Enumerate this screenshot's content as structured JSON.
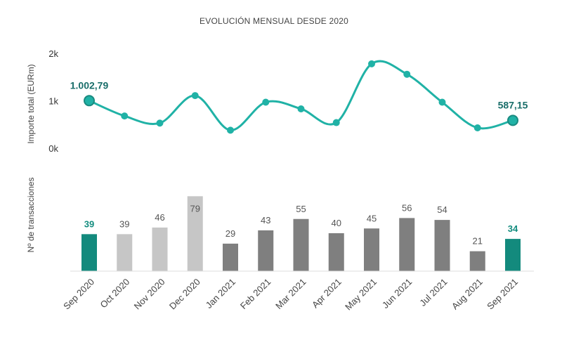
{
  "chart_data": {
    "title": "EVOLUCIÓN MENSUAL DESDE 2020",
    "categories": [
      "Sep 2020",
      "Oct 2020",
      "Nov 2020",
      "Dec 2020",
      "Jan 2021",
      "Feb 2021",
      "Mar 2021",
      "Apr 2021",
      "May 2021",
      "Jun 2021",
      "Jul 2021",
      "Aug 2021",
      "Sep 2021"
    ],
    "line": {
      "type": "line",
      "ylabel": "Importe total (EURm)",
      "y_ticks": [
        "0k",
        "1k",
        "2k"
      ],
      "ylim": [
        0,
        2000
      ],
      "values": [
        1002.79,
        680,
        530,
        1110,
        380,
        970,
        830,
        540,
        1780,
        1560,
        970,
        430,
        587.15
      ],
      "labels": [
        {
          "index": 0,
          "text": "1.002,79"
        },
        {
          "index": 12,
          "text": "587,15"
        }
      ],
      "color": "#20b2a6"
    },
    "bars": {
      "type": "bar",
      "ylabel": "Nº de transacciones",
      "values": [
        39,
        39,
        46,
        79,
        29,
        43,
        55,
        40,
        45,
        56,
        54,
        21,
        34
      ],
      "colors": [
        "#138a7d",
        "#c6c6c6",
        "#c6c6c6",
        "#c6c6c6",
        "#7f7f7f",
        "#7f7f7f",
        "#7f7f7f",
        "#7f7f7f",
        "#7f7f7f",
        "#7f7f7f",
        "#7f7f7f",
        "#7f7f7f",
        "#138a7d"
      ],
      "highlight_indices": [
        0,
        12
      ]
    }
  }
}
